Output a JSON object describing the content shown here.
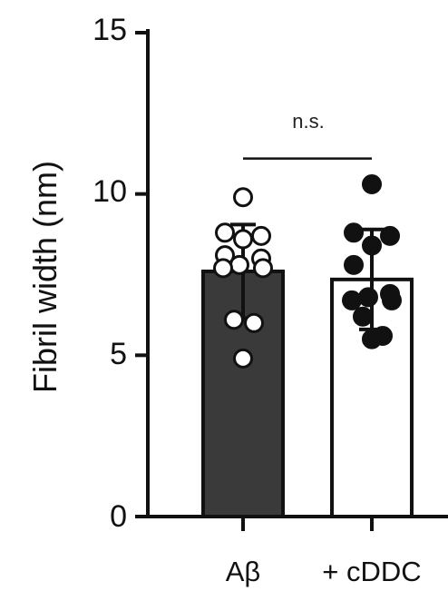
{
  "chart_data": {
    "type": "bar",
    "categories": [
      "Aβ",
      "+ cDDC"
    ],
    "ylabel": "Fibril width (nm)",
    "xlabel": "",
    "ylim": [
      0,
      15
    ],
    "yticks": [
      "0",
      "5",
      "10",
      "15"
    ],
    "grid": false,
    "series": [
      {
        "values": [
          7.6,
          7.35
        ],
        "error": [
          1.45,
          1.55
        ],
        "bar_colors": [
          "#3a3a3a",
          "#ffffff"
        ],
        "points": [
          [
            9.9,
            8.8,
            8.7,
            8.6,
            8.1,
            8.0,
            7.8,
            7.7,
            7.7,
            6.1,
            6.0,
            4.9
          ],
          [
            10.3,
            8.8,
            8.7,
            8.4,
            7.8,
            6.9,
            6.8,
            6.7,
            6.7,
            6.2,
            5.6,
            5.5
          ]
        ],
        "point_fill": [
          "#ffffff",
          "#111111"
        ]
      }
    ],
    "annotation": {
      "text": "n.s.",
      "between": [
        "Aβ",
        "+ cDDC"
      ],
      "level": 11.1
    }
  }
}
